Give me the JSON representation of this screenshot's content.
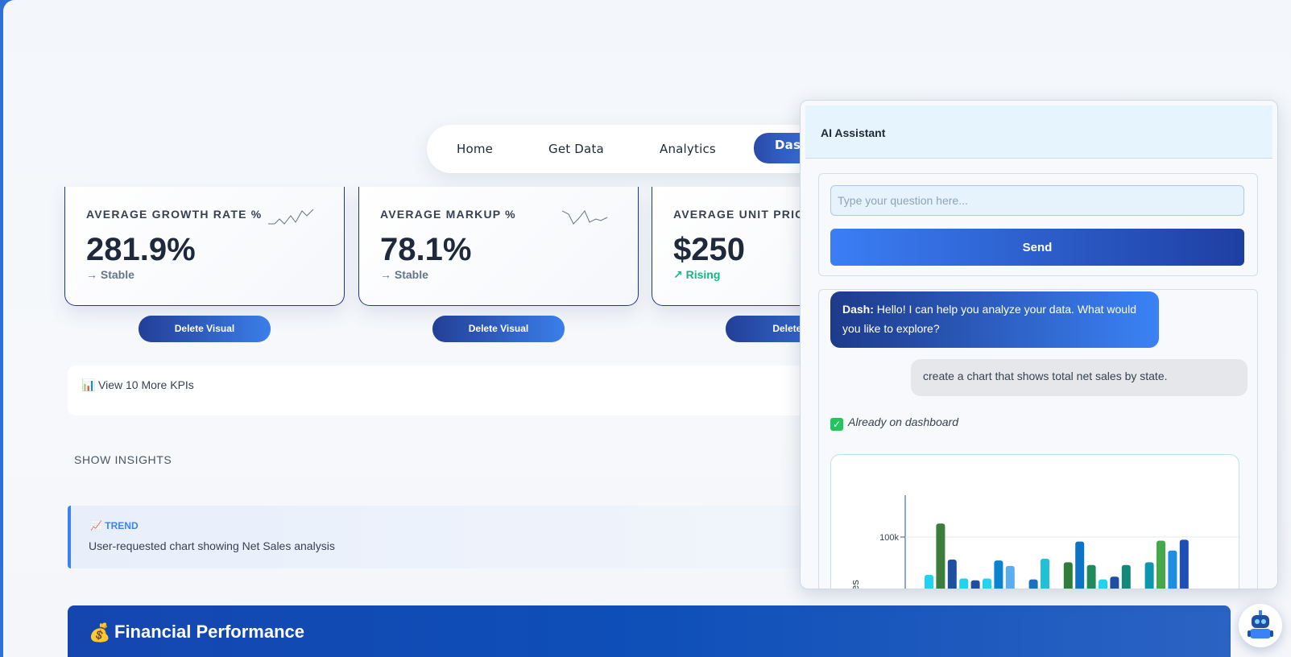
{
  "nav": {
    "items": [
      {
        "label": "Home"
      },
      {
        "label": "Get Data"
      },
      {
        "label": "Analytics"
      },
      {
        "label": "Das"
      }
    ]
  },
  "kpis": [
    {
      "label": "AVERAGE GROWTH RATE %",
      "value": "281.9%",
      "trend": "→ Stable",
      "trend_type": "stable"
    },
    {
      "label": "AVERAGE MARKUP %",
      "value": "78.1%",
      "trend": "→ Stable",
      "trend_type": "stable"
    },
    {
      "label": "AVERAGE UNIT PRICE",
      "value": "$250",
      "trend": "↗ Rising",
      "trend_type": "rising"
    }
  ],
  "delete_labels": [
    "Delete Visual",
    "Delete Visual",
    "Delete V"
  ],
  "more_kpis": {
    "icon": "bar-chart-icon",
    "label": "View 10 More KPIs"
  },
  "insights": {
    "toggle_label": "SHOW INSIGHTS",
    "tag": "TREND",
    "text": "User-requested chart showing Net Sales analysis"
  },
  "section": {
    "icon": "money-bag-icon",
    "title": "Financial Performance"
  },
  "assistant": {
    "title": "AI Assistant",
    "input_placeholder": "Type your question here...",
    "send_label": "Send",
    "bot_name": "Dash:",
    "bot_message": "Hello! I can help you analyze your data. What would you like to explore?",
    "user_message": "create a chart that shows total net sales by state.",
    "status_text": "Already on dashboard",
    "chart_ylabel": "t Sales",
    "chart_tick": "100k"
  },
  "chart_data": {
    "type": "bar",
    "ylabel": "t Sales",
    "y_ticks": [
      "100k"
    ],
    "bars": [
      {
        "value": 16,
        "color": "#22d3ee"
      },
      {
        "value": 130,
        "color": "#3b7d3b"
      },
      {
        "value": 50,
        "color": "#1e4fa0"
      },
      {
        "value": 8,
        "color": "#22d3ee"
      },
      {
        "value": 4,
        "color": "#1e4fa0"
      },
      {
        "value": 8,
        "color": "#22d3ee"
      },
      {
        "value": 48,
        "color": "#0b84d0"
      },
      {
        "value": 36,
        "color": "#5aaef0"
      },
      {
        "value": 0,
        "color": "#22d3ee"
      },
      {
        "value": 6,
        "color": "#1e6fc0"
      },
      {
        "value": 52,
        "color": "#22c1d6"
      },
      {
        "value": 0,
        "color": "#22d3ee"
      },
      {
        "value": 44,
        "color": "#2f7d3a"
      },
      {
        "value": 90,
        "color": "#0b74c8"
      },
      {
        "value": 38,
        "color": "#1f8a5a"
      },
      {
        "value": 6,
        "color": "#22d3ee"
      },
      {
        "value": 12,
        "color": "#1e4fa0"
      },
      {
        "value": 38,
        "color": "#13877a"
      },
      {
        "value": 0,
        "color": "#22d3ee"
      },
      {
        "value": 44,
        "color": "#0e96ae"
      },
      {
        "value": 92,
        "color": "#45a84a"
      },
      {
        "value": 70,
        "color": "#1e8fe0"
      },
      {
        "value": 94,
        "color": "#1e4fb8"
      }
    ]
  },
  "colors": {
    "accent": "#3b82f6",
    "brand_dark": "#1e3a8a",
    "rising": "#10b981"
  }
}
